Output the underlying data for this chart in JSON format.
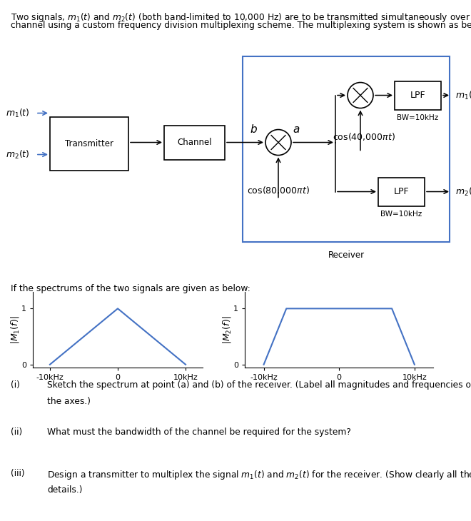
{
  "line_color": "#4472C4",
  "arrow_color": "#555555",
  "text_color": "#000000",
  "box_edge_color": "#4472C4",
  "background": "#ffffff",
  "title_line1": "Two signals, $m_1(t)$ and $m_2(t)$ (both band-limited to 10,000 Hz) are to be transmitted simultaneously over a",
  "title_line2": "channel using a custom frequency division multiplexing scheme. The multiplexing system is shown as below,",
  "spectrum_text": "If the spectrums of the two signals are given as below:",
  "q1_label": "(i)",
  "q1_text1": "Sketch the spectrum at point (a) and (b) of the receiver. (Label all magnitudes and frequencies of",
  "q1_text2": "the axes.)",
  "q2_label": "(ii)",
  "q2_text": "What must the bandwidth of the channel be required for the system?",
  "q3_label": "(iii)",
  "q3_text1": "Design a transmitter to multiplex the signal $m_1(t)$ and $m_2(t)$ for the receiver. (Show clearly all the",
  "q3_text2": "details.)"
}
